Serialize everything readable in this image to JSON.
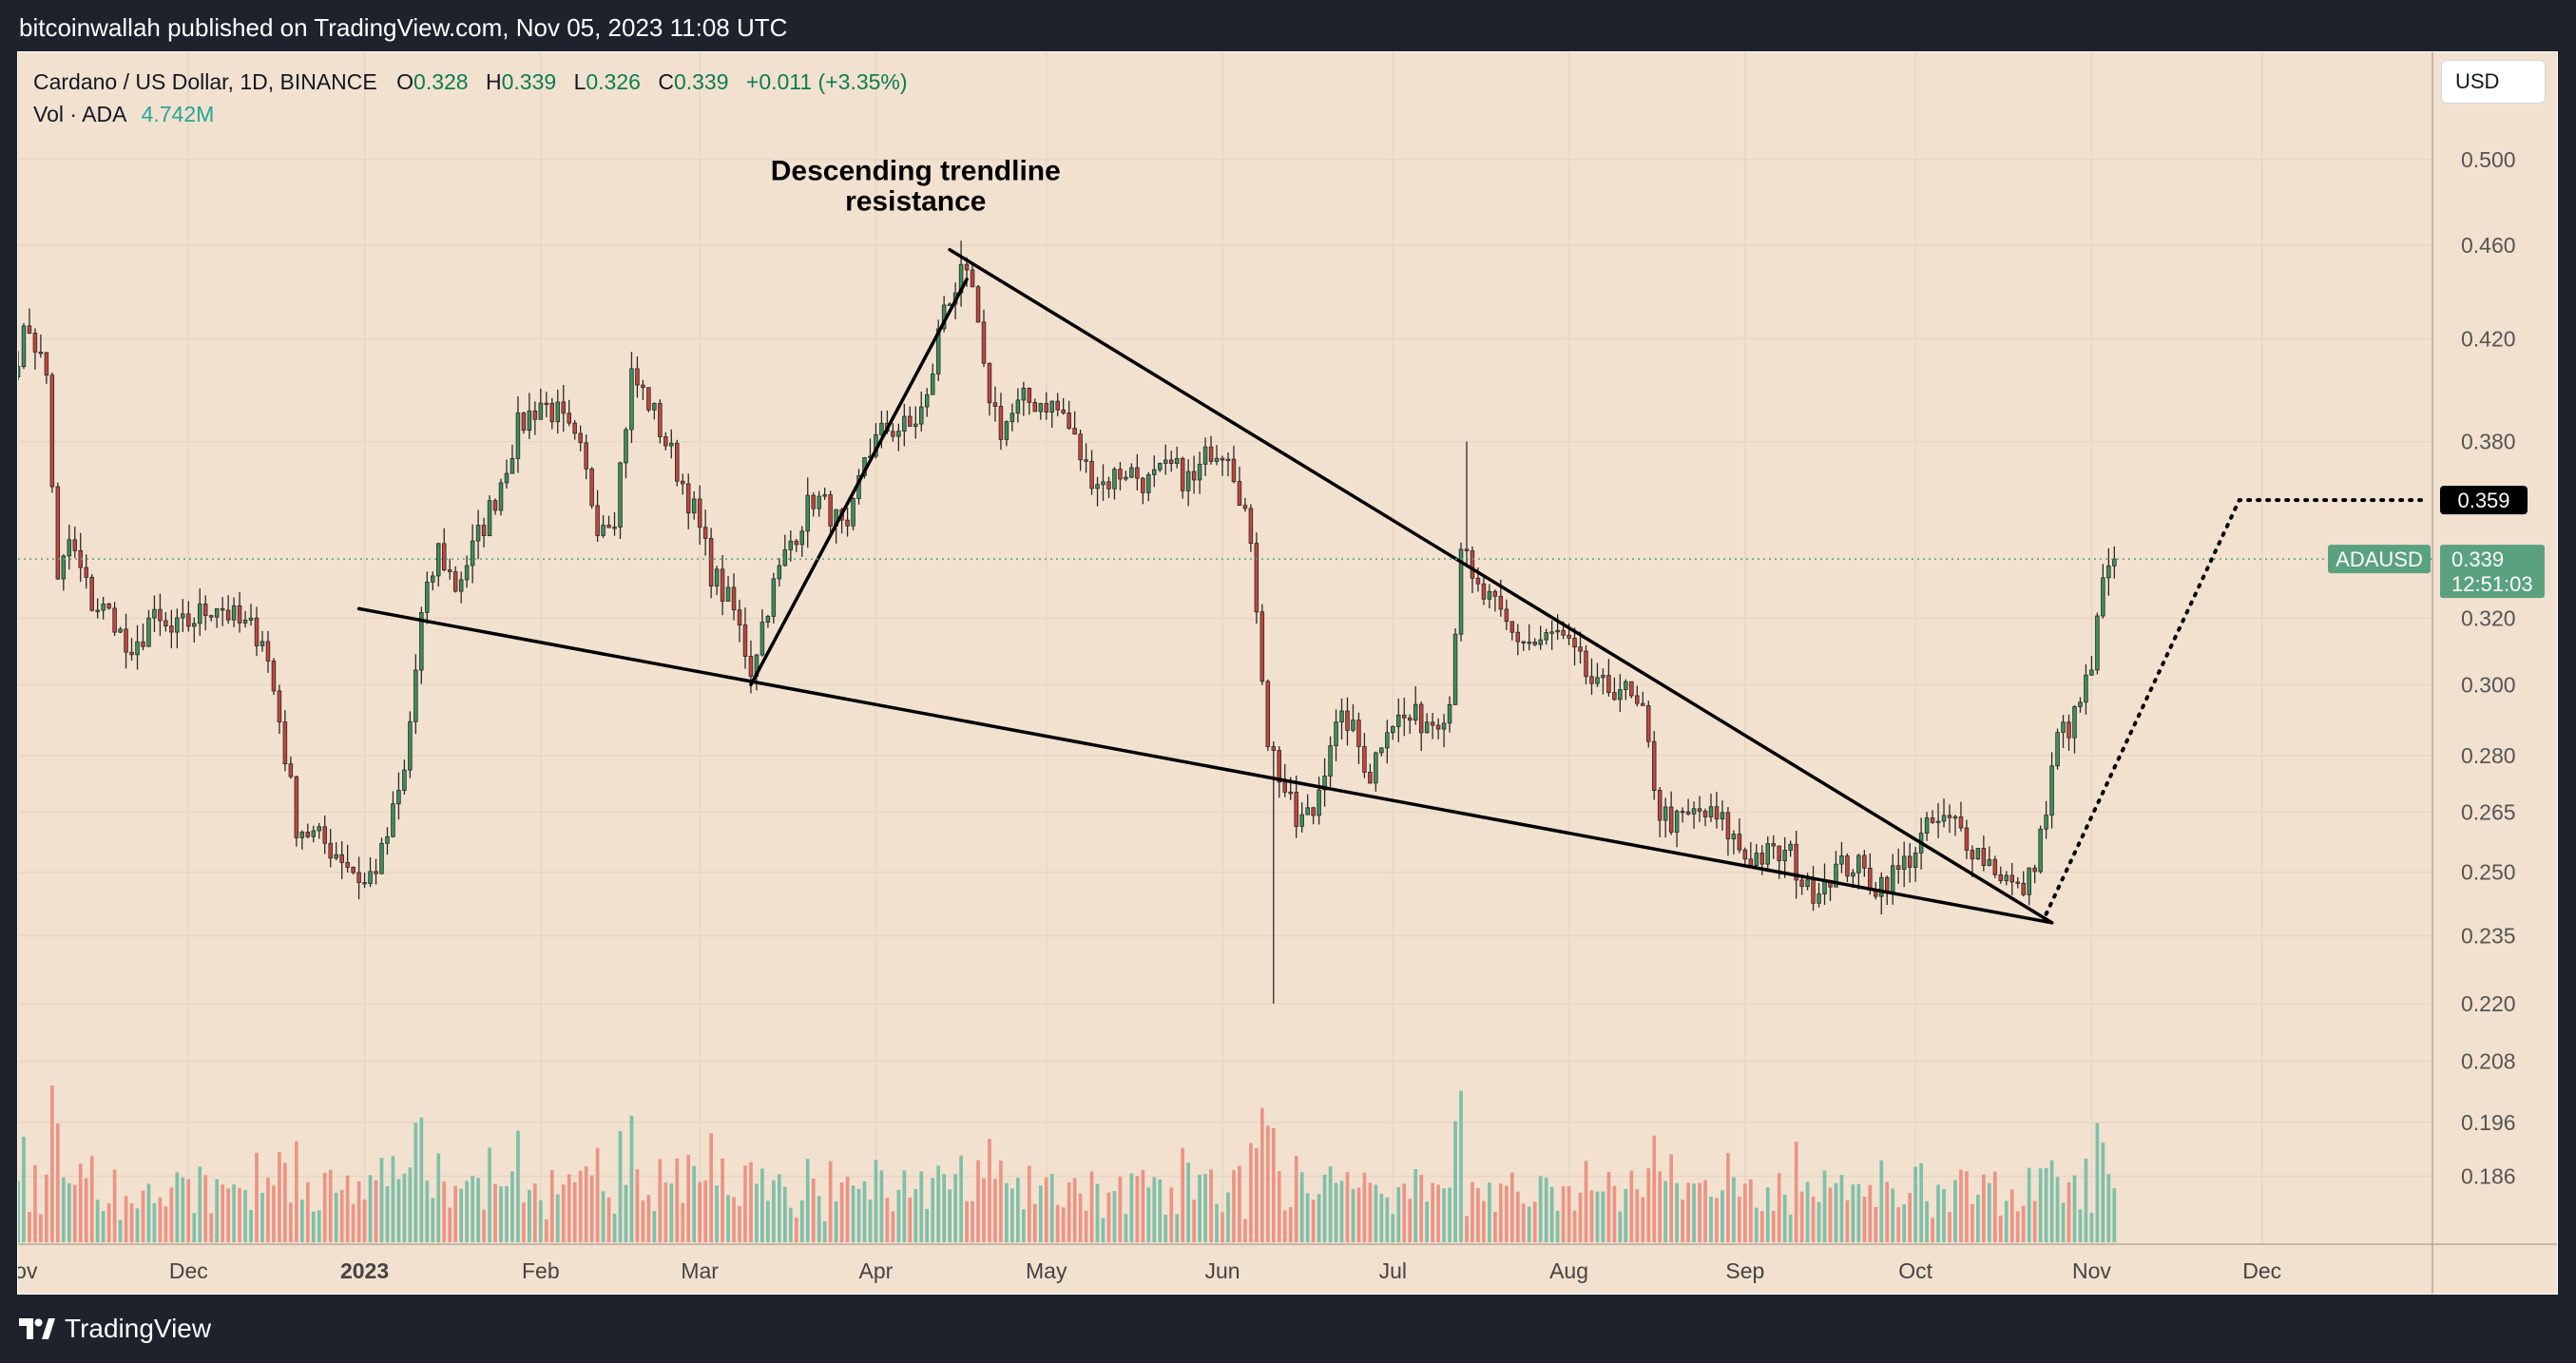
{
  "header": {
    "published_line": "bitcoinwallah published on TradingView.com, Nov 05, 2023 11:08 UTC"
  },
  "legend": {
    "symbol": "Cardano / US Dollar, 1D, BINANCE",
    "o_label": "O",
    "o_value": "0.328",
    "h_label": "H",
    "h_value": "0.339",
    "l_label": "L",
    "l_value": "0.326",
    "c_label": "C",
    "c_value": "0.339",
    "change": "+0.011 (+3.35%)",
    "vol_label": "Vol · ADA",
    "vol_value": "4.742M"
  },
  "currency_button": "USD",
  "footer": {
    "brand": "TradingView"
  },
  "colors": {
    "background": "#f2e1cf",
    "up_body": "#3d8f5b",
    "down_body": "#c2463a",
    "wick": "#2a2a2a",
    "volume_up": "#7fc0aa",
    "volume_down": "#eb9485",
    "price_tag": "#5aa27f",
    "target_tag": "#000000"
  },
  "chart_data": {
    "type": "candlestick",
    "symbol": "ADAUSD",
    "scale": "log",
    "ylim": [
      0.178,
      0.525
    ],
    "y_ticks": [
      "0.500",
      "0.460",
      "0.420",
      "0.380",
      "0.320",
      "0.300",
      "0.280",
      "0.265",
      "0.250",
      "0.235",
      "0.220",
      "0.208",
      "0.196",
      "0.186"
    ],
    "x_start": "2022-11-01",
    "x_end": "2023-12-31",
    "x_ticks": [
      {
        "date": "2022-11-01",
        "label": "Nov",
        "bold": false
      },
      {
        "date": "2022-12-01",
        "label": "Dec",
        "bold": false
      },
      {
        "date": "2023-01-01",
        "label": "2023",
        "bold": true
      },
      {
        "date": "2023-02-01",
        "label": "Feb",
        "bold": false
      },
      {
        "date": "2023-03-01",
        "label": "Mar",
        "bold": false
      },
      {
        "date": "2023-04-01",
        "label": "Apr",
        "bold": false
      },
      {
        "date": "2023-05-01",
        "label": "May",
        "bold": false
      },
      {
        "date": "2023-06-01",
        "label": "Jun",
        "bold": false
      },
      {
        "date": "2023-07-01",
        "label": "Jul",
        "bold": false
      },
      {
        "date": "2023-08-01",
        "label": "Aug",
        "bold": false
      },
      {
        "date": "2023-09-01",
        "label": "Sep",
        "bold": false
      },
      {
        "date": "2023-10-01",
        "label": "Oct",
        "bold": false
      },
      {
        "date": "2023-11-01",
        "label": "Nov",
        "bold": false
      },
      {
        "date": "2023-12-01",
        "label": "Dec",
        "bold": false
      }
    ],
    "close_path": [
      [
        "2022-11-01",
        0.415
      ],
      [
        "2022-11-03",
        0.425
      ],
      [
        "2022-11-06",
        0.405
      ],
      [
        "2022-11-08",
        0.33
      ],
      [
        "2022-11-10",
        0.345
      ],
      [
        "2022-11-14",
        0.325
      ],
      [
        "2022-11-18",
        0.32
      ],
      [
        "2022-11-21",
        0.305
      ],
      [
        "2022-11-24",
        0.32
      ],
      [
        "2022-11-28",
        0.315
      ],
      [
        "2022-12-02",
        0.32
      ],
      [
        "2022-12-06",
        0.325
      ],
      [
        "2022-12-10",
        0.318
      ],
      [
        "2022-12-14",
        0.315
      ],
      [
        "2022-12-17",
        0.29
      ],
      [
        "2022-12-20",
        0.262
      ],
      [
        "2022-12-24",
        0.258
      ],
      [
        "2022-12-28",
        0.254
      ],
      [
        "2023-01-01",
        0.247
      ],
      [
        "2023-01-04",
        0.254
      ],
      [
        "2023-01-08",
        0.275
      ],
      [
        "2023-01-11",
        0.32
      ],
      [
        "2023-01-14",
        0.342
      ],
      [
        "2023-01-17",
        0.33
      ],
      [
        "2023-01-20",
        0.342
      ],
      [
        "2023-01-24",
        0.36
      ],
      [
        "2023-01-28",
        0.385
      ],
      [
        "2023-02-01",
        0.395
      ],
      [
        "2023-02-04",
        0.39
      ],
      [
        "2023-02-08",
        0.375
      ],
      [
        "2023-02-11",
        0.352
      ],
      [
        "2023-02-14",
        0.355
      ],
      [
        "2023-02-17",
        0.405
      ],
      [
        "2023-02-20",
        0.395
      ],
      [
        "2023-02-24",
        0.375
      ],
      [
        "2023-02-28",
        0.355
      ],
      [
        "2023-03-03",
        0.335
      ],
      [
        "2023-03-07",
        0.322
      ],
      [
        "2023-03-10",
        0.305
      ],
      [
        "2023-03-13",
        0.325
      ],
      [
        "2023-03-17",
        0.345
      ],
      [
        "2023-03-21",
        0.36
      ],
      [
        "2023-03-24",
        0.355
      ],
      [
        "2023-03-27",
        0.345
      ],
      [
        "2023-03-30",
        0.375
      ],
      [
        "2023-04-03",
        0.385
      ],
      [
        "2023-04-07",
        0.385
      ],
      [
        "2023-04-10",
        0.395
      ],
      [
        "2023-04-13",
        0.435
      ],
      [
        "2023-04-16",
        0.445
      ],
      [
        "2023-04-18",
        0.44
      ],
      [
        "2023-04-20",
        0.405
      ],
      [
        "2023-04-23",
        0.385
      ],
      [
        "2023-04-27",
        0.395
      ],
      [
        "2023-05-01",
        0.395
      ],
      [
        "2023-05-04",
        0.39
      ],
      [
        "2023-05-08",
        0.37
      ],
      [
        "2023-05-11",
        0.365
      ],
      [
        "2023-05-15",
        0.37
      ],
      [
        "2023-05-19",
        0.365
      ],
      [
        "2023-05-23",
        0.37
      ],
      [
        "2023-05-27",
        0.365
      ],
      [
        "2023-05-30",
        0.378
      ],
      [
        "2023-06-02",
        0.378
      ],
      [
        "2023-06-05",
        0.355
      ],
      [
        "2023-06-07",
        0.325
      ],
      [
        "2023-06-09",
        0.285
      ],
      [
        "2023-06-11",
        0.275
      ],
      [
        "2023-06-14",
        0.262
      ],
      [
        "2023-06-17",
        0.265
      ],
      [
        "2023-06-20",
        0.285
      ],
      [
        "2023-06-23",
        0.29
      ],
      [
        "2023-06-27",
        0.275
      ],
      [
        "2023-06-30",
        0.29
      ],
      [
        "2023-07-04",
        0.29
      ],
      [
        "2023-07-08",
        0.29
      ],
      [
        "2023-07-11",
        0.295
      ],
      [
        "2023-07-13",
        0.345
      ],
      [
        "2023-07-15",
        0.33
      ],
      [
        "2023-07-18",
        0.325
      ],
      [
        "2023-07-22",
        0.315
      ],
      [
        "2023-07-26",
        0.312
      ],
      [
        "2023-07-30",
        0.315
      ],
      [
        "2023-08-02",
        0.308
      ],
      [
        "2023-08-06",
        0.298
      ],
      [
        "2023-08-10",
        0.3
      ],
      [
        "2023-08-14",
        0.29
      ],
      [
        "2023-08-17",
        0.265
      ],
      [
        "2023-08-20",
        0.262
      ],
      [
        "2023-08-24",
        0.265
      ],
      [
        "2023-08-28",
        0.262
      ],
      [
        "2023-09-01",
        0.254
      ],
      [
        "2023-09-05",
        0.254
      ],
      [
        "2023-09-09",
        0.254
      ],
      [
        "2023-09-12",
        0.245
      ],
      [
        "2023-09-16",
        0.25
      ],
      [
        "2023-09-20",
        0.252
      ],
      [
        "2023-09-24",
        0.247
      ],
      [
        "2023-09-28",
        0.25
      ],
      [
        "2023-10-01",
        0.256
      ],
      [
        "2023-10-04",
        0.262
      ],
      [
        "2023-10-08",
        0.262
      ],
      [
        "2023-10-12",
        0.255
      ],
      [
        "2023-10-16",
        0.25
      ],
      [
        "2023-10-19",
        0.245
      ],
      [
        "2023-10-21",
        0.248
      ],
      [
        "2023-10-24",
        0.265
      ],
      [
        "2023-10-26",
        0.285
      ],
      [
        "2023-10-29",
        0.29
      ],
      [
        "2023-11-01",
        0.305
      ],
      [
        "2023-11-03",
        0.33
      ],
      [
        "2023-11-05",
        0.339
      ]
    ],
    "wick_extremes": [
      {
        "date": "2023-06-10",
        "low": 0.22
      },
      {
        "date": "2023-07-14",
        "high": 0.38
      },
      {
        "date": "2023-04-16",
        "high": 0.462
      }
    ],
    "last_price": {
      "label": "ADAUSD",
      "value": "0.339",
      "countdown": "12:51:03"
    },
    "target_level": {
      "value": "0.359"
    },
    "drawings": [
      {
        "kind": "line",
        "points": [
          [
            "2022-12-31",
            0.323
          ],
          [
            "2023-10-25",
            0.238
          ]
        ]
      },
      {
        "kind": "line",
        "points": [
          [
            "2023-04-14",
            0.458
          ],
          [
            "2023-10-25",
            0.238
          ]
        ]
      },
      {
        "kind": "line",
        "points": [
          [
            "2023-03-10",
            0.3
          ],
          [
            "2023-04-17",
            0.445
          ]
        ]
      },
      {
        "kind": "dotted",
        "points": [
          [
            "2023-10-24",
            0.24
          ],
          [
            "2023-11-27",
            0.359
          ],
          [
            "2023-12-29",
            0.359
          ]
        ]
      }
    ],
    "annotations": [
      {
        "text_lines": [
          "Descending trendline",
          "resistance"
        ],
        "date": "2023-04-08",
        "value": 0.49
      }
    ]
  }
}
